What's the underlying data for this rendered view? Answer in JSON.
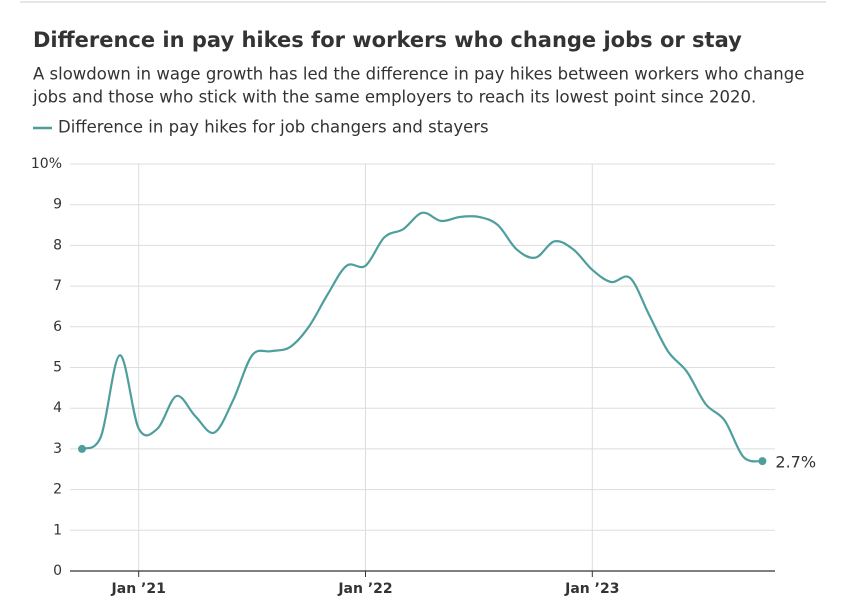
{
  "chart_data": {
    "type": "line",
    "title": "Difference in pay hikes for workers who change jobs or stay",
    "subtitle": [
      "A slowdown in wage growth has led the difference in pay hikes between workers who change",
      "jobs and those who stick with the same employers to reach its lowest point since 2020."
    ],
    "x": [
      "2020-10",
      "2020-11",
      "2020-12",
      "2021-01",
      "2021-02",
      "2021-03",
      "2021-04",
      "2021-05",
      "2021-06",
      "2021-07",
      "2021-08",
      "2021-09",
      "2021-10",
      "2021-11",
      "2021-12",
      "2022-01",
      "2022-02",
      "2022-03",
      "2022-04",
      "2022-05",
      "2022-06",
      "2022-07",
      "2022-08",
      "2022-09",
      "2022-10",
      "2022-11",
      "2022-12",
      "2023-01",
      "2023-02",
      "2023-03",
      "2023-04",
      "2023-05",
      "2023-06",
      "2023-07",
      "2023-08",
      "2023-09",
      "2023-10"
    ],
    "series": [
      {
        "name": "Difference in pay hikes for job changers and stayers",
        "color": "#4f9e9e",
        "values": [
          3.0,
          3.3,
          5.3,
          3.5,
          3.5,
          4.3,
          3.8,
          3.4,
          4.2,
          5.3,
          5.4,
          5.5,
          6.0,
          6.8,
          7.5,
          7.5,
          8.2,
          8.4,
          8.8,
          8.6,
          8.7,
          8.7,
          8.5,
          7.9,
          7.7,
          8.1,
          7.9,
          7.4,
          7.1,
          7.2,
          6.3,
          5.4,
          4.9,
          4.1,
          3.7,
          2.8,
          2.7
        ]
      }
    ],
    "end_label": "2.7%",
    "xticks": [
      {
        "value": "2021-01",
        "label": "Jan ’21"
      },
      {
        "value": "2022-01",
        "label": "Jan ’22"
      },
      {
        "value": "2023-01",
        "label": "Jan ’23"
      }
    ],
    "ylim": [
      0,
      10
    ],
    "yticks": [
      0,
      1,
      2,
      3,
      4,
      5,
      6,
      7,
      8,
      9,
      {
        "value": 10,
        "label": "10%"
      }
    ],
    "grid": true
  }
}
